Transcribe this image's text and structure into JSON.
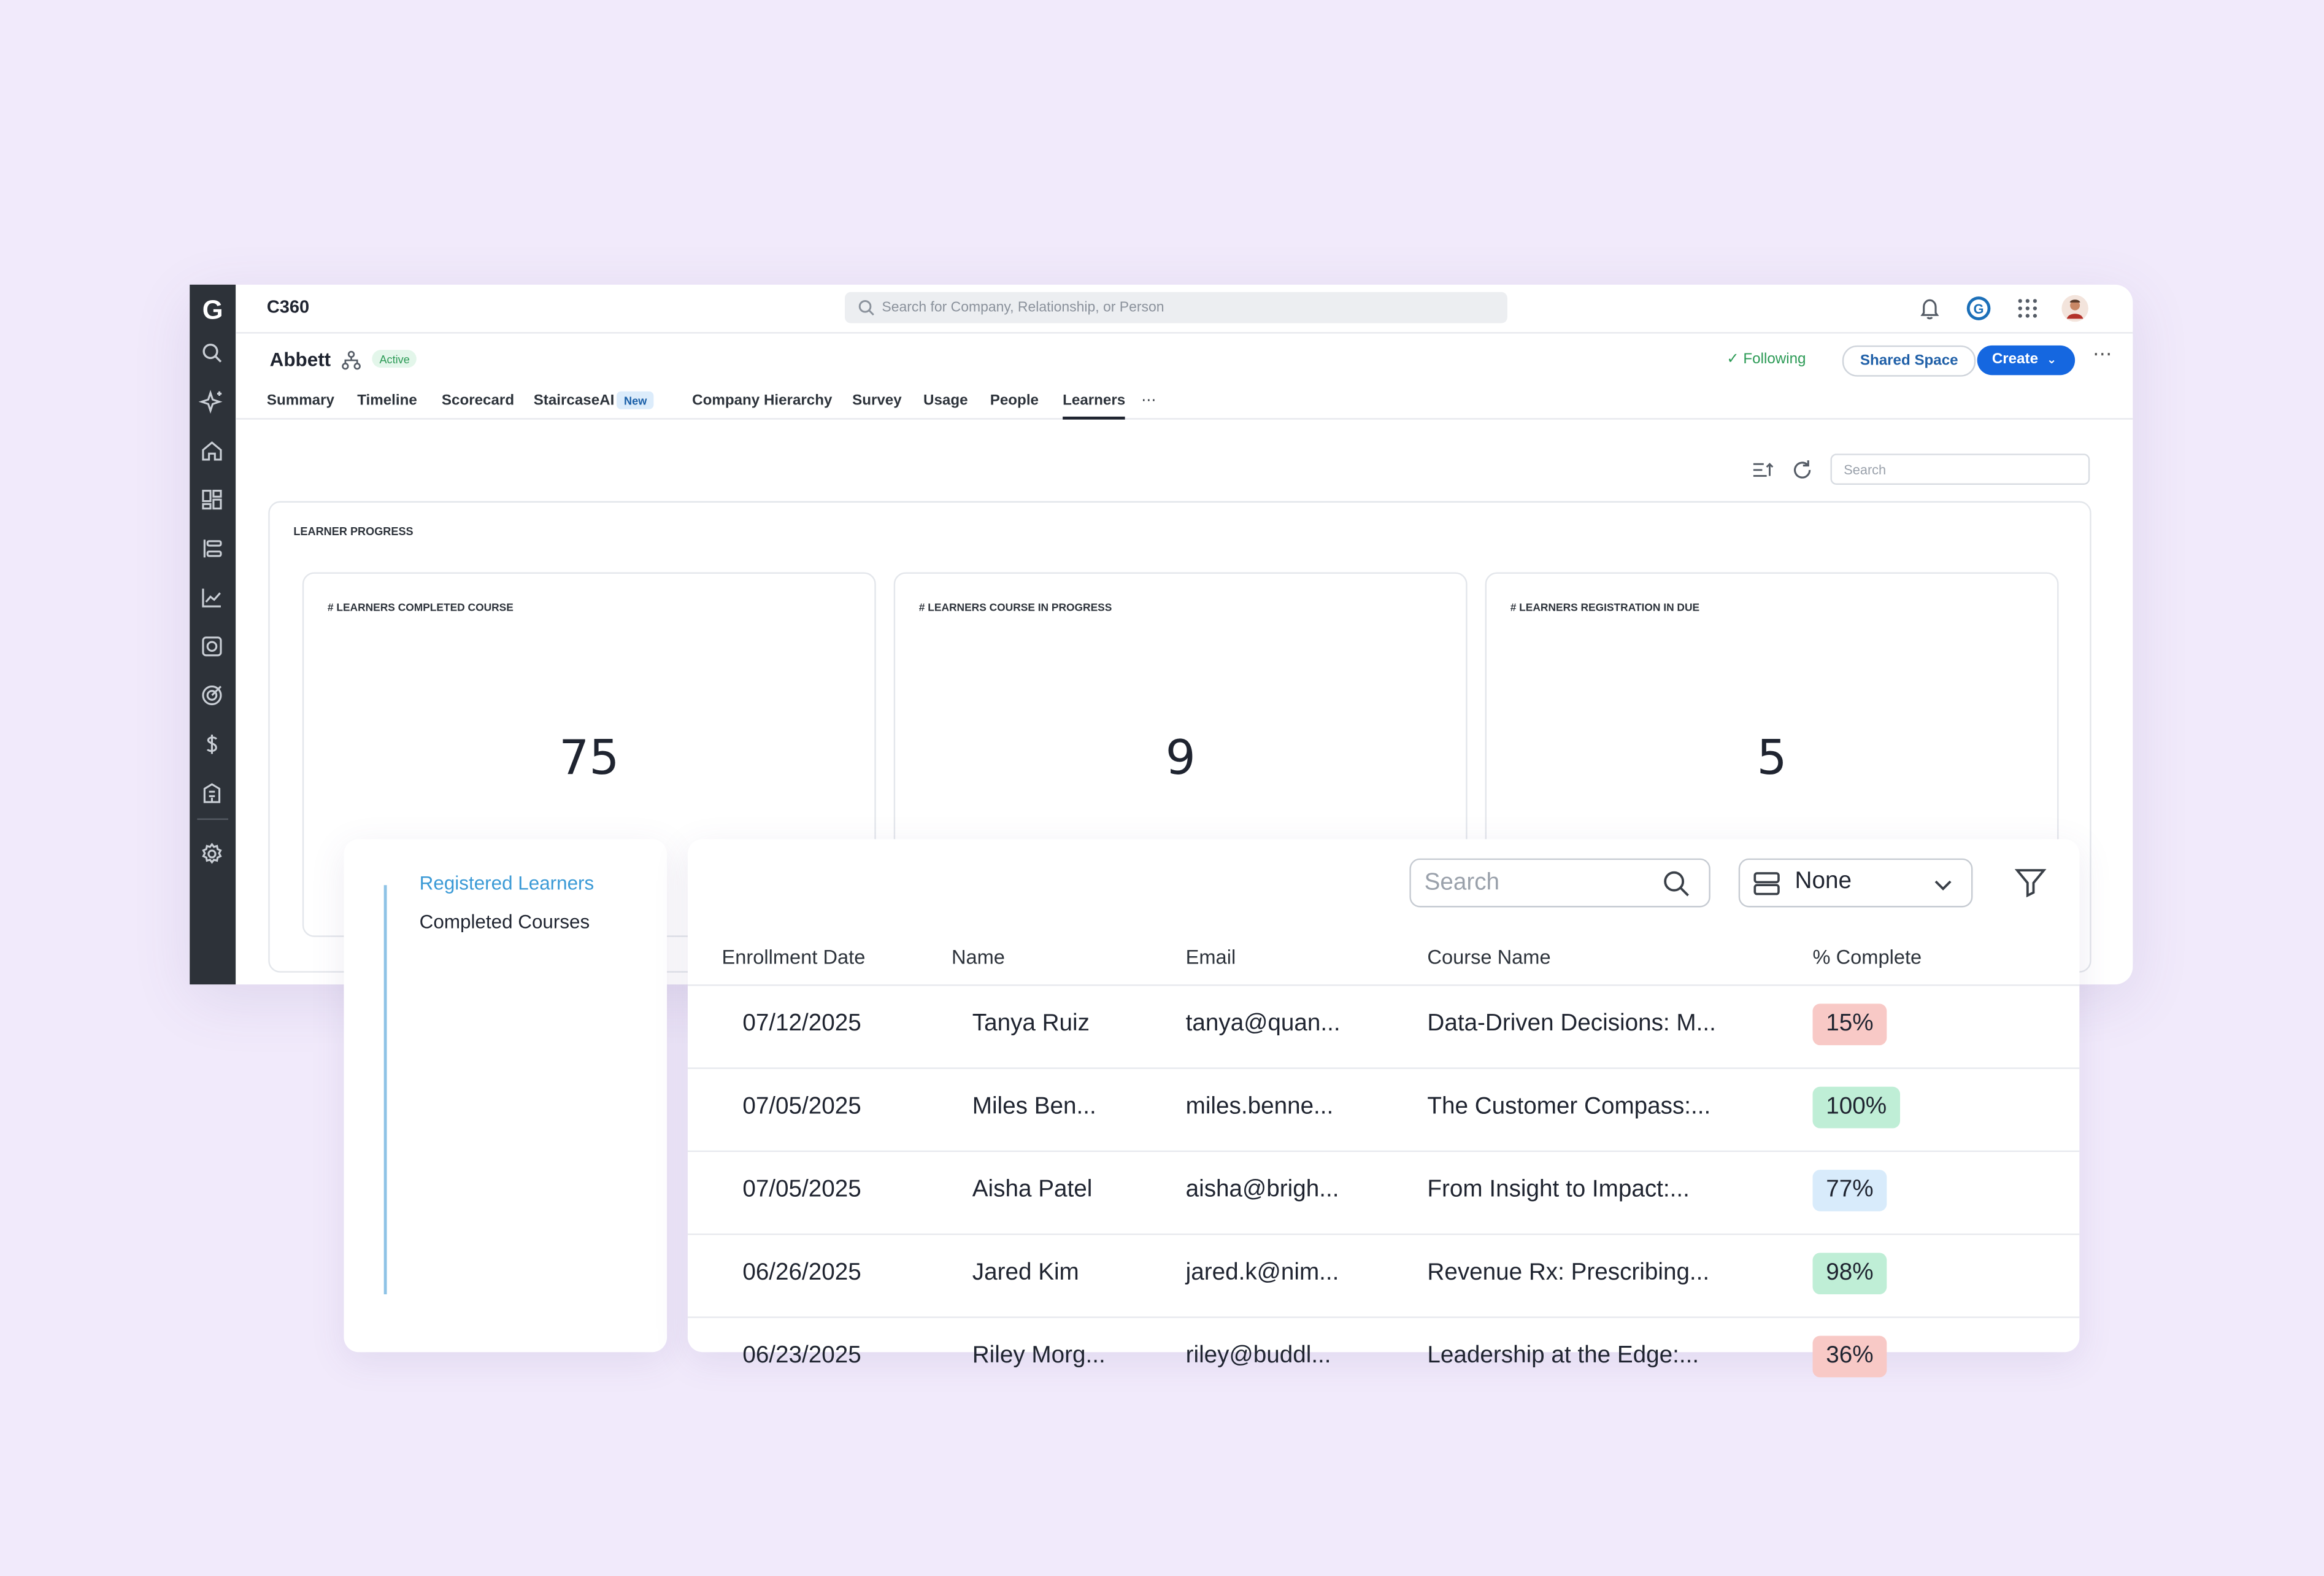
{
  "app": {
    "title": "C360",
    "logo": "G",
    "global_search_placeholder": "Search for Company, Relationship, or Person"
  },
  "nav_rail": [
    "search-icon",
    "sparkle-ai-icon",
    "home-icon",
    "dashboard-icon",
    "timeline-list-icon",
    "analytics-chart-icon",
    "survey-icon",
    "target-icon",
    "dollar-icon",
    "building-icon",
    "settings-icon"
  ],
  "top_icons": [
    "bell-icon",
    "gainsight-g-icon",
    "app-grid-icon",
    "user-avatar"
  ],
  "header": {
    "account_name": "Abbett",
    "status": "Active",
    "following": "Following",
    "shared_space": "Shared Space",
    "create": "Create"
  },
  "tabs": [
    {
      "label": "Summary"
    },
    {
      "label": "Timeline"
    },
    {
      "label": "Scorecard"
    },
    {
      "label": "StaircaseAI",
      "badge": "New"
    },
    {
      "label": "Company Hierarchy"
    },
    {
      "label": "Survey"
    },
    {
      "label": "Usage"
    },
    {
      "label": "People"
    },
    {
      "label": "Learners",
      "active": true
    }
  ],
  "learners_search_placeholder": "Search",
  "learner_progress": {
    "title": "LEARNER PROGRESS",
    "metrics": [
      {
        "label": "# LEARNERS COMPLETED COURSE",
        "value": "75"
      },
      {
        "label": "# LEARNERS COURSE IN PROGRESS",
        "value": "9"
      },
      {
        "label": "# LEARNERS REGISTRATION IN DUE",
        "value": "5"
      }
    ]
  },
  "side_nav": {
    "items": [
      {
        "label": "Registered Learners",
        "active": true
      },
      {
        "label": "Completed Courses",
        "active": false
      }
    ]
  },
  "table": {
    "search_placeholder": "Search",
    "group_by_value": "None",
    "columns": [
      "Enrollment Date",
      "Name",
      "Email",
      "Course Name",
      "% Complete"
    ],
    "rows": [
      {
        "date": "07/12/2025",
        "name": "Tanya Ruiz",
        "email": "tanya@quan...",
        "course": "Data-Driven Decisions: M...",
        "pct": "15%",
        "pct_color": "#f8c9c6"
      },
      {
        "date": "07/05/2025",
        "name": "Miles Ben...",
        "email": "miles.benne...",
        "course": "The Customer Compass:...",
        "pct": "100%",
        "pct_color": "#bfeed6"
      },
      {
        "date": "07/05/2025",
        "name": "Aisha Patel",
        "email": "aisha@brigh...",
        "course": "From Insight to Impact:...",
        "pct": "77%",
        "pct_color": "#d8ebfb"
      },
      {
        "date": "06/26/2025",
        "name": "Jared Kim",
        "email": "jared.k@nim...",
        "course": "Revenue Rx: Prescribing...",
        "pct": "98%",
        "pct_color": "#bfeed6"
      },
      {
        "date": "06/23/2025",
        "name": "Riley Morg...",
        "email": "riley@buddl...",
        "course": "Leadership at the Edge:...",
        "pct": "36%",
        "pct_color": "#f8c9c6"
      }
    ]
  },
  "colors": {
    "background": "#f1eafb",
    "rail": "#2d3239",
    "primary": "#1567e0",
    "active_green": "#2b9a55",
    "side_active": "#3b9ad6"
  }
}
